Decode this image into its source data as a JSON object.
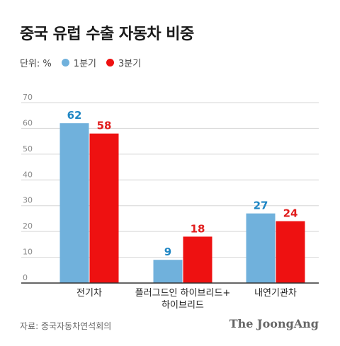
{
  "header": {
    "title": "중국 유럽 수출 자동차 비중"
  },
  "legend": {
    "unit": "단위: %"
  },
  "colors": {
    "q1": "#70b1dc",
    "q3": "#ee1111",
    "q1_label": "#1f86c4",
    "q3_label": "#e11d1d",
    "grid": "#d6d6d6",
    "axis": "#333333"
  },
  "chart_data": {
    "type": "bar",
    "title": "중국 유럽 수출 자동차 비중",
    "categories": [
      [
        "전기차"
      ],
      [
        "플러그드인 하이브리드+",
        "하이브리드"
      ],
      [
        "내연기관차"
      ]
    ],
    "series": [
      {
        "name": "1분기",
        "values": [
          62,
          9,
          27
        ]
      },
      {
        "name": "3분기",
        "values": [
          58,
          18,
          24
        ]
      }
    ],
    "ylim": [
      0,
      70
    ],
    "yticks": [
      0,
      10,
      20,
      30,
      40,
      50,
      60,
      70
    ],
    "grid": true,
    "legend_position": "top-left"
  },
  "footer": {
    "source": "자료: 중국자동차연석회의",
    "brand": "The JoongAng"
  }
}
